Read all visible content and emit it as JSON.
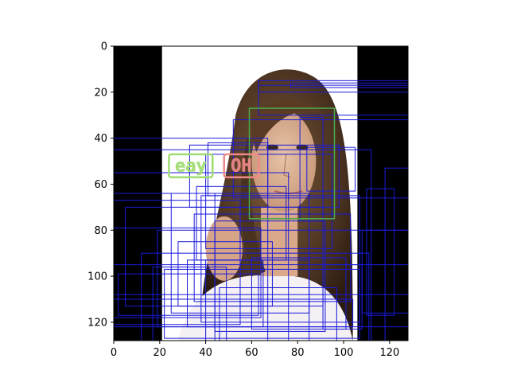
{
  "figure": {
    "axes": {
      "xlim": [
        0,
        128
      ],
      "ylim": [
        128,
        0
      ],
      "x_ticks": [
        0,
        20,
        40,
        60,
        80,
        100,
        120
      ],
      "y_ticks": [
        0,
        20,
        40,
        60,
        80,
        100,
        120
      ],
      "x_tick_labels": [
        "0",
        "20",
        "40",
        "60",
        "80",
        "100",
        "120"
      ],
      "y_tick_labels": [
        "0",
        "20",
        "40",
        "60",
        "80",
        "100",
        "120"
      ]
    },
    "image": {
      "subject": "face portrait",
      "padding_color": "#000000",
      "background_color": "#ffffff"
    },
    "colors": {
      "anchor_box": "#1a1adb",
      "ground_truth_box": "#4aa84a",
      "label_green": "#9fdc70",
      "label_red": "#f08a8a"
    },
    "labels": [
      {
        "text": "eay",
        "color": "#9fdc70"
      },
      {
        "text": "OH",
        "color": "#f08a8a"
      }
    ],
    "ground_truth_box": [
      59,
      27,
      96,
      75
    ],
    "anchor_boxes": [
      [
        63,
        17,
        128,
        30
      ],
      [
        63,
        15,
        128,
        20
      ],
      [
        77,
        16,
        128,
        18
      ],
      [
        52,
        32,
        128,
        66
      ],
      [
        81,
        31,
        91,
        76
      ],
      [
        84,
        44,
        105,
        63
      ],
      [
        0,
        40,
        67,
        128
      ],
      [
        41,
        42,
        67,
        65
      ],
      [
        33,
        43,
        98,
        70
      ],
      [
        0,
        45,
        112,
        128
      ],
      [
        40,
        47,
        95,
        88
      ],
      [
        0,
        55,
        76,
        128
      ],
      [
        36,
        61,
        75,
        93
      ],
      [
        25,
        64,
        85,
        116
      ],
      [
        0,
        64,
        44,
        128
      ],
      [
        38,
        65,
        107,
        120
      ],
      [
        0,
        67,
        55,
        121
      ],
      [
        35,
        73,
        103,
        111
      ],
      [
        44,
        76,
        92,
        124
      ],
      [
        0,
        79,
        64,
        118
      ],
      [
        19,
        80,
        128,
        122
      ],
      [
        28,
        85,
        69,
        113
      ],
      [
        12,
        90,
        111,
        128
      ],
      [
        32,
        93,
        65,
        122
      ],
      [
        0,
        95,
        128,
        128
      ],
      [
        22,
        97,
        107,
        127
      ],
      [
        0,
        108,
        128,
        128
      ],
      [
        118,
        53,
        128,
        128
      ],
      [
        108,
        80,
        128,
        116
      ],
      [
        110,
        62,
        122,
        117
      ],
      [
        40,
        93,
        85,
        128
      ],
      [
        46,
        105,
        97,
        128
      ],
      [
        60,
        92,
        101,
        123
      ],
      [
        91,
        95,
        108,
        123
      ],
      [
        17,
        96,
        49,
        128
      ],
      [
        2,
        99,
        63,
        117
      ],
      [
        0,
        110,
        104,
        122
      ],
      [
        5,
        70,
        91,
        113
      ]
    ]
  }
}
